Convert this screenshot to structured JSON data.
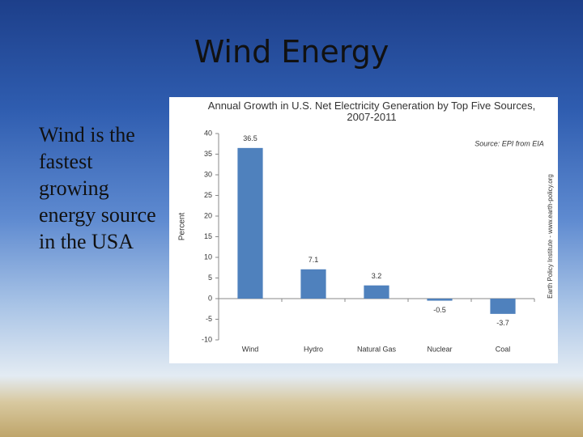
{
  "slide": {
    "title": "Wind Energy",
    "body": "Wind is the fastest growing energy source in the USA"
  },
  "chart_data": {
    "type": "bar",
    "title": "Annual Growth in U.S. Net Electricity Generation by Top Five Sources, 2007-2011",
    "annotation": "Source: EPI from EIA",
    "side_note": "Earth Policy Institute - www.earth-policy.org",
    "y_label": "Percent",
    "categories": [
      "Wind",
      "Hydro",
      "Natural Gas",
      "Nuclear",
      "Coal"
    ],
    "values": [
      36.5,
      7.1,
      3.2,
      -0.5,
      -3.7
    ],
    "color": "#4f81bd",
    "ylim": [
      -10,
      40
    ],
    "yticks": [
      -10,
      -5,
      0,
      5,
      10,
      15,
      20,
      25,
      30,
      35,
      40
    ],
    "grid": false
  }
}
